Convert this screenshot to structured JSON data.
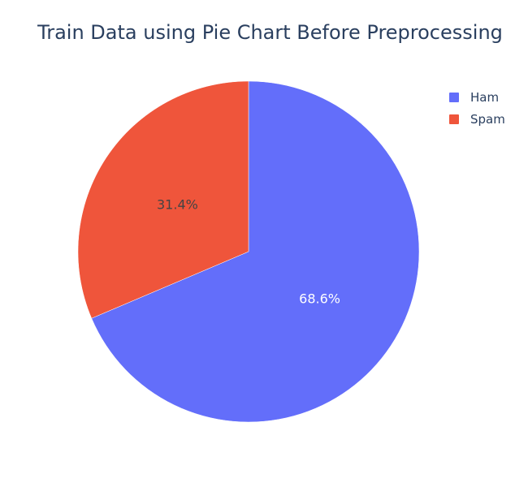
{
  "chart_data": {
    "type": "pie",
    "title": "Train Data using Pie Chart Before Preprocessing",
    "labels": [
      "Ham",
      "Spam"
    ],
    "values": [
      68.6,
      31.4
    ],
    "value_labels": [
      "68.6%",
      "31.4%"
    ],
    "colors": [
      "#636efa",
      "#ef553b"
    ],
    "label_colors": [
      "#ffffff",
      "#444444"
    ],
    "direction": "clockwise",
    "start": "top",
    "legend": {
      "placement": "top-right",
      "entries": [
        "Ham",
        "Spam"
      ]
    }
  }
}
